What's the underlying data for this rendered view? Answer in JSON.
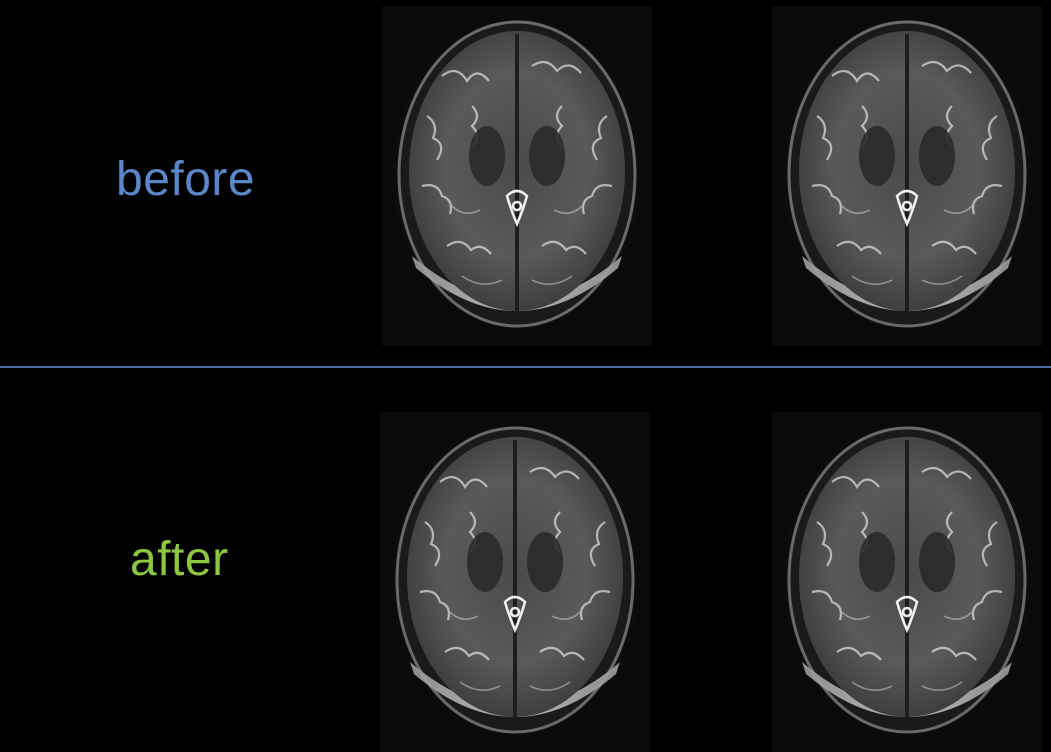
{
  "labels": {
    "before": "before",
    "after": "after"
  },
  "colors": {
    "background": "#000000",
    "before_label": "#5b87c8",
    "after_label": "#8dc63f",
    "divider": "#4a6fa8"
  },
  "scans": [
    {
      "row": "before",
      "position": "left",
      "icon": "brain-mri-axial"
    },
    {
      "row": "before",
      "position": "right",
      "icon": "brain-mri-axial"
    },
    {
      "row": "after",
      "position": "left",
      "icon": "brain-mri-axial"
    },
    {
      "row": "after",
      "position": "right",
      "icon": "brain-mri-axial"
    }
  ]
}
